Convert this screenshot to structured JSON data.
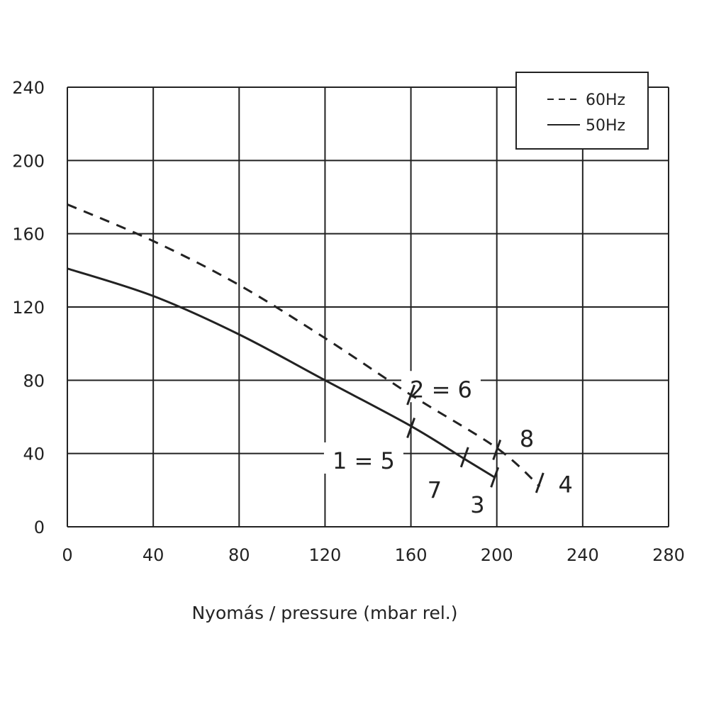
{
  "chart_data": {
    "type": "line",
    "xlabel": "Nyomás   / pressure (mbar rel.)",
    "ylabel": "",
    "xlim": [
      0,
      280
    ],
    "ylim": [
      0,
      240
    ],
    "x_ticks": [
      0,
      40,
      80,
      120,
      160,
      200,
      240,
      280
    ],
    "y_ticks": [
      0,
      40,
      80,
      120,
      160,
      200,
      240
    ],
    "grid": true,
    "legend_position": "top-right",
    "series": [
      {
        "name": "60Hz",
        "style": "dashed",
        "color": "#222222",
        "points": [
          [
            0,
            176
          ],
          [
            40,
            156
          ],
          [
            80,
            132
          ],
          [
            120,
            103
          ],
          [
            160,
            72
          ],
          [
            200,
            43
          ],
          [
            220,
            22
          ]
        ]
      },
      {
        "name": "50Hz",
        "style": "solid",
        "color": "#222222",
        "points": [
          [
            0,
            141
          ],
          [
            40,
            126
          ],
          [
            80,
            105
          ],
          [
            120,
            80
          ],
          [
            160,
            55
          ],
          [
            185,
            37
          ],
          [
            199,
            27
          ]
        ]
      }
    ],
    "markers": [
      {
        "x": 160,
        "y": 72
      },
      {
        "x": 200,
        "y": 42
      },
      {
        "x": 220,
        "y": 24
      },
      {
        "x": 160,
        "y": 54
      },
      {
        "x": 185,
        "y": 38
      },
      {
        "x": 199,
        "y": 27
      }
    ],
    "annotations": [
      {
        "text": "2 = 6",
        "x": 174,
        "y": 75
      },
      {
        "text": "8",
        "x": 214,
        "y": 48
      },
      {
        "text": "4",
        "x": 232,
        "y": 23
      },
      {
        "text": "1 = 5",
        "x": 138,
        "y": 36
      },
      {
        "text": "7",
        "x": 171,
        "y": 20
      },
      {
        "text": "3",
        "x": 191,
        "y": 12
      }
    ]
  }
}
